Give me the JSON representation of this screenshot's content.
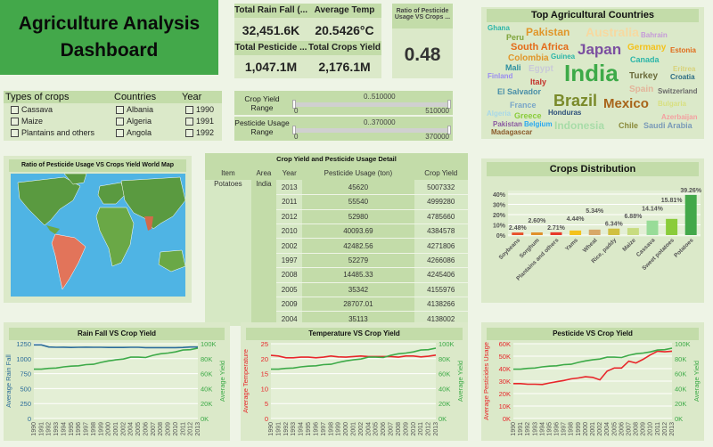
{
  "title": {
    "line1": "Agriculture Analysis",
    "line2": "Dashboard"
  },
  "kpis": {
    "rain_label": "Total Rain Fall (...",
    "rain_value": "32,451.6K",
    "temp_label": "Average Temp",
    "temp_value": "20.5426°C",
    "pest_label": "Total Pesticide ...",
    "pest_value": "1,047.1M",
    "yield_label": "Total Crops Yield",
    "yield_value": "2,176.1M",
    "ratio_label": "Ratio of Pesticide Usage VS Crops ...",
    "ratio_value": "0.48"
  },
  "filters": {
    "crops_label": "Types of crops",
    "crops": [
      "Cassava",
      "Maize",
      "Plantains and others"
    ],
    "countries_label": "Countries",
    "countries": [
      "Albania",
      "Algeria",
      "Angola"
    ],
    "year_label": "Year",
    "years": [
      "1990",
      "1991",
      "1992"
    ]
  },
  "sliders": [
    {
      "label": "Crop Yield Range",
      "range_text": "0..510000",
      "min": "0",
      "max": "510000"
    },
    {
      "label": "Pesticide Usage Range",
      "range_text": "0..370000",
      "min": "0",
      "max": "370000"
    }
  ],
  "wordcloud": {
    "title": "Top Agricultural Countries",
    "words": [
      "Ghana",
      "Peru",
      "Pakistan",
      "Australia",
      "Bahrain",
      "Finland",
      "South Africa",
      "Japan",
      "Germany",
      "Estonia",
      "Guinea",
      "Colombia",
      "Canada",
      "Honduras",
      "Mali",
      "Egypt",
      "India",
      "Eritrea",
      "Turkey",
      "Croatia",
      "Algeria",
      "Italy",
      "Spain",
      "Switzerland",
      "El Salvador",
      "Brazil",
      "Mexico",
      "Bulgaria",
      "Pakistan",
      "France",
      "Azerbaijan",
      "Madagascar",
      "Greece",
      "Indonesia",
      "Chile",
      "Saudi Arabia",
      "Belgium"
    ],
    "colors": [
      "#2bb5a8",
      "#7ea33a",
      "#e0962a",
      "#f7d9a0",
      "#c59ad8",
      "#9a8cf0",
      "#e46b1a",
      "#7b4fa0",
      "#f4c21c",
      "#e06b1a",
      "#2bb5a8",
      "#e0962a",
      "#2bb5a8",
      "#2c4f7a",
      "#2e8fa0",
      "#c9c9d8",
      "#3daa48",
      "#d8d27a",
      "#6a6a3a",
      "#2c6c84",
      "#a8d8e8",
      "#c4302a",
      "#e3b49a",
      "#6a6a6a",
      "#4a8fa8",
      "#7a8a2a",
      "#a8641a",
      "#d8e080",
      "#8a5aa0",
      "#7aa6c8",
      "#f4a0a0",
      "#8a5a2a",
      "#8acc3a",
      "#a8dca8",
      "#8a8a3a",
      "#7a9ab8",
      "#2aa8f0"
    ]
  },
  "map": {
    "title": "Ratio of Pesticide Usage VS Crops Yield World Map"
  },
  "table": {
    "title": "Crop Yield and Pesticide Usage Detail",
    "columns": [
      "Item",
      "Area",
      "Year",
      "Pesticide Usage (ton)",
      "Crop Yield"
    ],
    "item": "Potatoes",
    "area": "India",
    "rows": [
      [
        "2013",
        "45620",
        "5007332"
      ],
      [
        "2011",
        "55540",
        "4999280"
      ],
      [
        "2012",
        "52980",
        "4785660"
      ],
      [
        "2010",
        "40093.69",
        "4384578"
      ],
      [
        "2002",
        "42482.56",
        "4271806"
      ],
      [
        "1997",
        "52279",
        "4266086"
      ],
      [
        "2008",
        "14485.33",
        "4245406"
      ],
      [
        "2005",
        "35342",
        "4155976"
      ],
      [
        "2009",
        "28707.01",
        "4138266"
      ],
      [
        "2004",
        "35113",
        "4138002"
      ]
    ]
  },
  "chart_data": [
    {
      "type": "bar",
      "title": "Crops Distribution",
      "categories": [
        "Soybeans",
        "Sorghum",
        "Plantains and others",
        "Yams",
        "Wheat",
        "Rice, paddy",
        "Maize",
        "Cassava",
        "Sweet potatoes",
        "Potatoes"
      ],
      "values": [
        2.48,
        2.6,
        2.71,
        4.44,
        5.34,
        6.34,
        6.88,
        14.14,
        15.81,
        39.26
      ],
      "labels": [
        "2.48%",
        "2.60%",
        "2.71%",
        "4.44%",
        "5.34%",
        "6.34%",
        "6.88%",
        "14.14%",
        "15.81%",
        "39.26%"
      ],
      "colors": [
        "#e8502a",
        "#e0902a",
        "#e83a2a",
        "#f4c21c",
        "#d8a868",
        "#d0c040",
        "#c8dc80",
        "#98dc98",
        "#8acc3a",
        "#43a84a"
      ],
      "ylim": [
        0,
        40
      ],
      "yticks": [
        "0%",
        "10%",
        "20%",
        "30%",
        "40%"
      ]
    },
    {
      "type": "line",
      "title": "Rain Fall VS Crop Yield",
      "x": [
        "1990",
        "1991",
        "1992",
        "1993",
        "1994",
        "1995",
        "1996",
        "1997",
        "1998",
        "1999",
        "2000",
        "2001",
        "2002",
        "2004",
        "2005",
        "2006",
        "2007",
        "2008",
        "2009",
        "2010",
        "2011",
        "2012",
        "2013"
      ],
      "ylabel": "Average Rain Fall",
      "y2label": "Average Yield",
      "ylim": [
        0,
        1250
      ],
      "y2lim": [
        0,
        100000
      ],
      "yticks": [
        "0",
        "250",
        "500",
        "750",
        "1000",
        "1250"
      ],
      "y2ticks": [
        "0K",
        "20K",
        "40K",
        "60K",
        "80K",
        "100K"
      ],
      "color": "#2c6c9a",
      "y2color": "#3daa48",
      "series": [
        {
          "axis": "left",
          "values": [
            1230,
            1230,
            1195,
            1190,
            1192,
            1188,
            1190,
            1192,
            1190,
            1190,
            1188,
            1188,
            1188,
            1190,
            1190,
            1185,
            1185,
            1185,
            1185,
            1185,
            1188,
            1195,
            1195
          ]
        },
        {
          "axis": "right",
          "values": [
            66000,
            66000,
            67000,
            67500,
            69000,
            70000,
            70500,
            72000,
            72500,
            75000,
            77000,
            78500,
            79500,
            82000,
            82000,
            81500,
            84500,
            86500,
            87500,
            89000,
            91500,
            92000,
            94000
          ]
        }
      ]
    },
    {
      "type": "line",
      "title": "Temperature VS Crop Yield",
      "x": [
        "1990",
        "1991",
        "1992",
        "1993",
        "1994",
        "1995",
        "1996",
        "1997",
        "1998",
        "1999",
        "2000",
        "2001",
        "2002",
        "2004",
        "2005",
        "2006",
        "2007",
        "2008",
        "2009",
        "2010",
        "2011",
        "2012",
        "2013"
      ],
      "ylabel": "Average Temperature",
      "y2label": "Average Yield",
      "ylim": [
        0,
        25
      ],
      "y2lim": [
        0,
        100000
      ],
      "yticks": [
        "0",
        "5",
        "10",
        "15",
        "20",
        "25"
      ],
      "y2ticks": [
        "0K",
        "20K",
        "40K",
        "60K",
        "80K",
        "100K"
      ],
      "color": "#e8262a",
      "y2color": "#3daa48",
      "series": [
        {
          "axis": "left",
          "values": [
            21.1,
            20.9,
            20.3,
            20.3,
            20.5,
            20.5,
            20.3,
            20.5,
            20.9,
            20.6,
            20.5,
            20.7,
            20.9,
            20.7,
            20.7,
            20.7,
            20.7,
            20.5,
            20.9,
            20.9,
            20.6,
            20.8,
            21.2
          ]
        },
        {
          "axis": "right",
          "values": [
            66000,
            66000,
            67000,
            67500,
            69000,
            70000,
            70500,
            72000,
            72500,
            75000,
            77000,
            78500,
            79500,
            82000,
            82000,
            81500,
            84500,
            86500,
            87500,
            89000,
            91500,
            92000,
            94000
          ]
        }
      ]
    },
    {
      "type": "line",
      "title": "Pesticide VS Crop Yield",
      "x": [
        "1990",
        "1991",
        "1992",
        "1993",
        "1994",
        "1995",
        "1996",
        "1997",
        "1998",
        "1999",
        "2000",
        "2001",
        "2002",
        "2004",
        "2005",
        "2006",
        "2007",
        "2008",
        "2009",
        "2010",
        "2011",
        "2012",
        "2013"
      ],
      "ylabel": "Average Pesticides Usage",
      "y2label": "Average Yield",
      "ylim": [
        0,
        60000
      ],
      "y2lim": [
        0,
        100000
      ],
      "yticks": [
        "0K",
        "10K",
        "20K",
        "30K",
        "40K",
        "50K",
        "60K"
      ],
      "y2ticks": [
        "0K",
        "20K",
        "40K",
        "60K",
        "80K",
        "100K"
      ],
      "color": "#e8262a",
      "y2color": "#3daa48",
      "series": [
        {
          "axis": "left",
          "values": [
            28000,
            28000,
            27500,
            27500,
            27300,
            28500,
            29500,
            30500,
            31800,
            32500,
            33500,
            33000,
            31000,
            38000,
            40500,
            40500,
            46000,
            44500,
            47500,
            51000,
            54000,
            53500,
            54000
          ]
        },
        {
          "axis": "right",
          "values": [
            66000,
            66000,
            67000,
            67500,
            69000,
            70000,
            70500,
            72000,
            72500,
            75000,
            77000,
            78500,
            79500,
            82000,
            82000,
            81500,
            84500,
            86500,
            87500,
            89000,
            91500,
            92000,
            94000
          ]
        }
      ]
    }
  ]
}
